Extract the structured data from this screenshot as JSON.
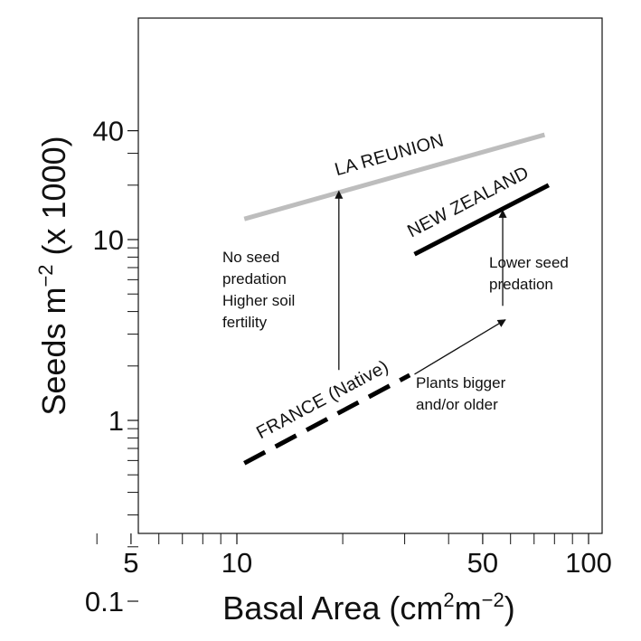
{
  "chart_data": {
    "type": "line",
    "xlabel": "Basal Area (cm2m−2)",
    "ylabel": "Seeds m−2 (x 1000)",
    "x_scale": "log",
    "y_scale": "log",
    "xlim": [
      3,
      120
    ],
    "ylim": [
      0.07,
      50
    ],
    "x_ticks": [
      5,
      10,
      50,
      100
    ],
    "y_ticks": [
      0.1,
      1,
      10,
      40
    ],
    "x_minor_ticks": [
      4,
      6,
      7,
      8,
      9,
      20,
      30,
      40,
      60,
      70,
      80,
      90
    ],
    "y_minor_ticks": [
      0.2,
      0.3,
      0.4,
      0.5,
      0.6,
      0.7,
      0.8,
      0.9,
      2,
      3,
      4,
      5,
      6,
      7,
      8,
      9,
      20,
      30
    ],
    "series": [
      {
        "name": "LA REUNION",
        "color": "#bdbdbd",
        "dash": "solid",
        "x": [
          10.5,
          75
        ],
        "y": [
          13,
          38
        ]
      },
      {
        "name": "NEW ZEALAND",
        "color": "#000000",
        "dash": "solid",
        "x": [
          32,
          77
        ],
        "y": [
          8.3,
          20
        ]
      },
      {
        "name": "FRANCE (Native)",
        "color": "#000000",
        "dash": "dashed",
        "x": [
          10.5,
          31
        ],
        "y": [
          0.58,
          1.78
        ]
      }
    ],
    "annotations": [
      {
        "id": "fertility",
        "text": "No seed\npredation\nHigher soil\nfertility",
        "arrow_from": [
          19.5,
          1.9
        ],
        "arrow_to": [
          19.5,
          18.5
        ]
      },
      {
        "id": "predation",
        "text": "Lower seed\npredation",
        "arrow_from": [
          57,
          4.3
        ],
        "arrow_to": [
          57,
          14.5
        ]
      },
      {
        "id": "bigger",
        "text": "Plants bigger\nand/or older",
        "arrow_from": [
          32,
          1.8
        ],
        "arrow_to": [
          58,
          3.6
        ]
      }
    ]
  }
}
